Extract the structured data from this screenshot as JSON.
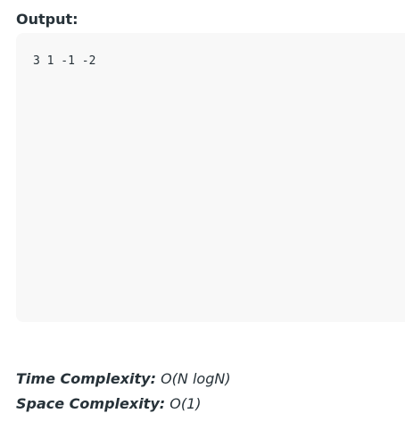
{
  "output_section": {
    "heading": "Output:",
    "code": "3 1 -1 -2"
  },
  "complexity": {
    "time_label": "Time Complexity:",
    "time_value": "O(N logN)",
    "space_label": "Space Complexity:",
    "space_value": "O(1)"
  }
}
